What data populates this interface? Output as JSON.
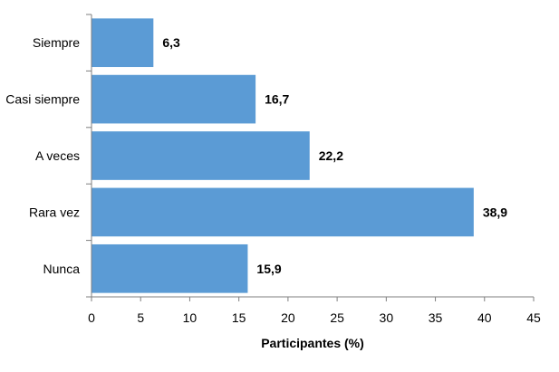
{
  "chart_data": {
    "type": "bar",
    "orientation": "horizontal",
    "categories": [
      "Siempre",
      "Casi siempre",
      "A veces",
      "Rara vez",
      "Nunca"
    ],
    "values": [
      6.3,
      16.7,
      22.2,
      38.9,
      15.9
    ],
    "value_labels": [
      "6,3",
      "16,7",
      "22,2",
      "38,9",
      "15,9"
    ],
    "title": "",
    "xlabel": "Participantes (%)",
    "ylabel": "",
    "xlim": [
      0,
      45
    ],
    "xticks": [
      0,
      5,
      10,
      15,
      20,
      25,
      30,
      35,
      40,
      45
    ],
    "grid": false,
    "legend": "none",
    "bar_color": "#5B9BD5"
  }
}
